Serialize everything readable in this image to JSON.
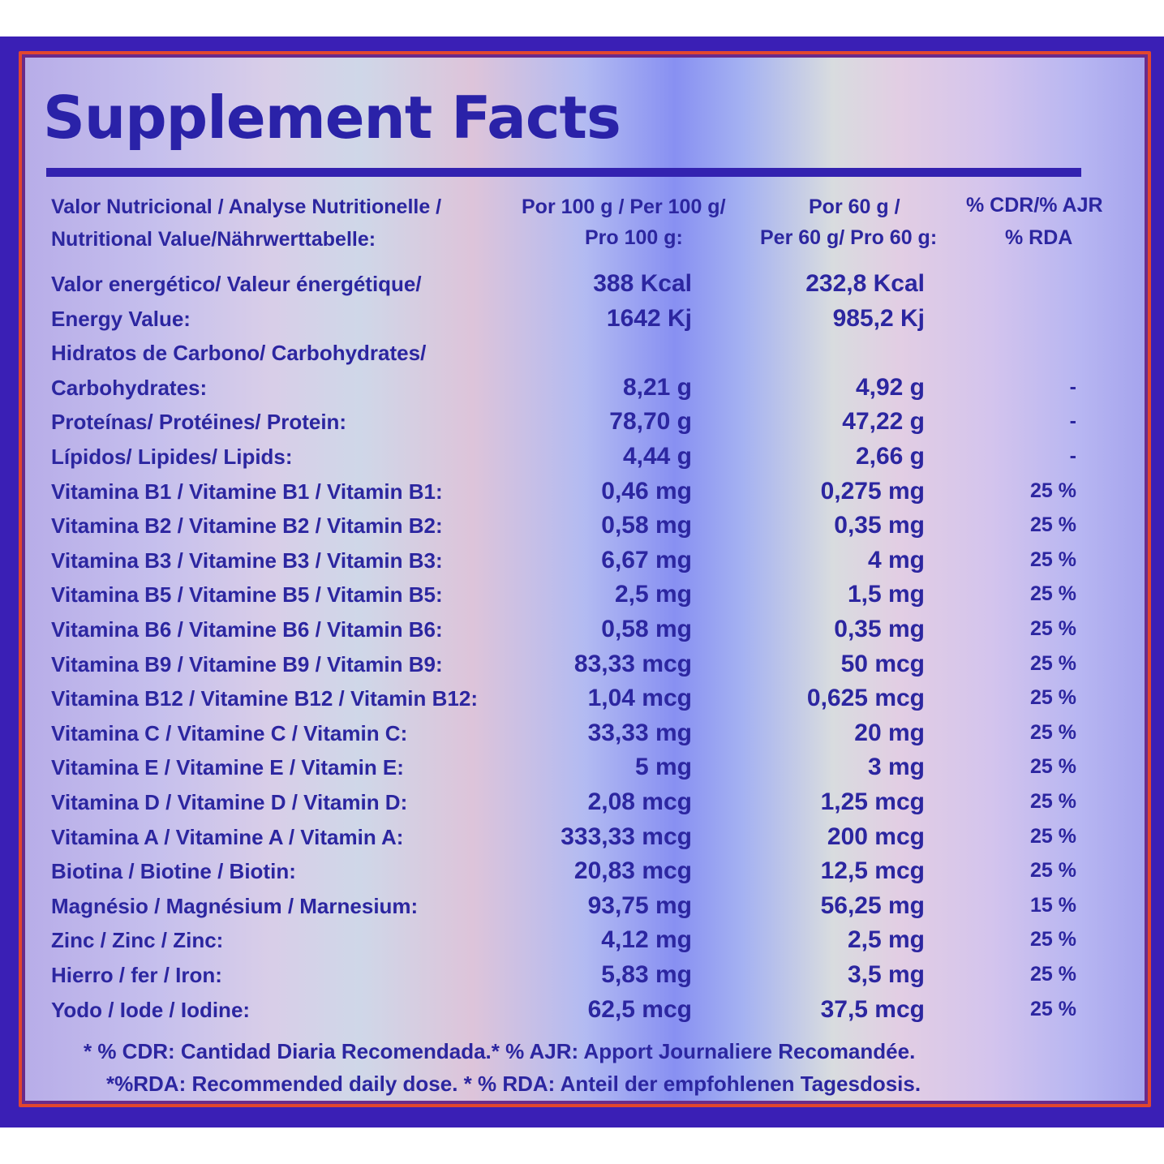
{
  "title": "Supplement Facts",
  "header": {
    "row1": [
      "Valor Nutricional / Analyse Nutritionelle /",
      "Por 100 g / Per 100 g/",
      "Por 60 g /",
      "% CDR/% AJR"
    ],
    "row2": [
      "Nutritional Value/Nährwerttabelle:",
      "Pro 100 g:",
      "Per 60 g/ Pro 60 g:",
      "% RDA"
    ]
  },
  "rows": [
    {
      "label": "Valor energético/ Valeur énergétique/",
      "per100": "388 Kcal",
      "per60": "232,8 Kcal",
      "rda": ""
    },
    {
      "label": "Energy Value:",
      "per100": "1642 Kj",
      "per60": "985,2 Kj",
      "rda": ""
    },
    {
      "label": "Hidratos de Carbono/ Carbohydrates/",
      "per100": "",
      "per60": "",
      "rda": ""
    },
    {
      "label": "Carbohydrates:",
      "per100": "8,21 g",
      "per60": "4,92 g",
      "rda": "-"
    },
    {
      "label": "Proteínas/ Protéines/ Protein:",
      "per100": "78,70 g",
      "per60": "47,22 g",
      "rda": "-"
    },
    {
      "label": "Lípidos/ Lipides/ Lipids:",
      "per100": "4,44 g",
      "per60": "2,66 g",
      "rda": "-"
    },
    {
      "label": "Vitamina B1 / Vitamine B1 / Vitamin B1:",
      "per100": "0,46 mg",
      "per60": "0,275 mg",
      "rda": "25 %"
    },
    {
      "label": "Vitamina B2 / Vitamine B2 / Vitamin B2:",
      "per100": "0,58 mg",
      "per60": "0,35 mg",
      "rda": "25 %"
    },
    {
      "label": "Vitamina B3 / Vitamine B3 / Vitamin B3:",
      "per100": "6,67 mg",
      "per60": "4 mg",
      "rda": "25 %"
    },
    {
      "label": "Vitamina B5 / Vitamine B5 / Vitamin B5:",
      "per100": "2,5 mg",
      "per60": "1,5 mg",
      "rda": "25 %"
    },
    {
      "label": "Vitamina B6 / Vitamine B6 / Vitamin B6:",
      "per100": "0,58 mg",
      "per60": "0,35 mg",
      "rda": "25 %"
    },
    {
      "label": "Vitamina B9 / Vitamine B9 / Vitamin B9:",
      "per100": "83,33 mcg",
      "per60": "50 mcg",
      "rda": "25 %"
    },
    {
      "label": "Vitamina B12 / Vitamine B12 / Vitamin B12:",
      "per100": "1,04 mcg",
      "per60": "0,625 mcg",
      "rda": "25 %"
    },
    {
      "label": "Vitamina C / Vitamine C / Vitamin C:",
      "per100": "33,33 mg",
      "per60": "20 mg",
      "rda": "25 %"
    },
    {
      "label": "Vitamina E / Vitamine E / Vitamin E:",
      "per100": "5 mg",
      "per60": "3 mg",
      "rda": "25 %"
    },
    {
      "label": "Vitamina D / Vitamine D / Vitamin D:",
      "per100": "2,08 mcg",
      "per60": "1,25 mcg",
      "rda": "25 %"
    },
    {
      "label": "Vitamina A / Vitamine A / Vitamin A:",
      "per100": "333,33 mcg",
      "per60": "200 mcg",
      "rda": "25 %"
    },
    {
      "label": "Biotina / Biotine / Biotin:",
      "per100": "20,83 mcg",
      "per60": "12,5 mcg",
      "rda": "25 %"
    },
    {
      "label": "Magnésio / Magnésium / Marnesium:",
      "per100": "93,75 mg",
      "per60": "56,25 mg",
      "rda": "15 %"
    },
    {
      "label": "Zinc / Zinc / Zinc:",
      "per100": "4,12 mg",
      "per60": "2,5 mg",
      "rda": "25 %"
    },
    {
      "label": "Hierro / fer / Iron:",
      "per100": "5,83 mg",
      "per60": "3,5 mg",
      "rda": "25 %"
    },
    {
      "label": "Yodo / Iode / Iodine:",
      "per100": "62,5 mcg",
      "per60": "37,5 mcg",
      "rda": "25 %"
    }
  ],
  "footnotes": [
    "* % CDR: Cantidad Diaria Recomendada.* % AJR: Apport Journaliere Recomandée.",
    "*%RDA: Recommended daily dose. * % RDA: Anteil der empfohlenen Tagesdosis."
  ],
  "colors": {
    "text": "#2c26a0",
    "frame": "#3a1fb5",
    "border": "#e2462e"
  }
}
